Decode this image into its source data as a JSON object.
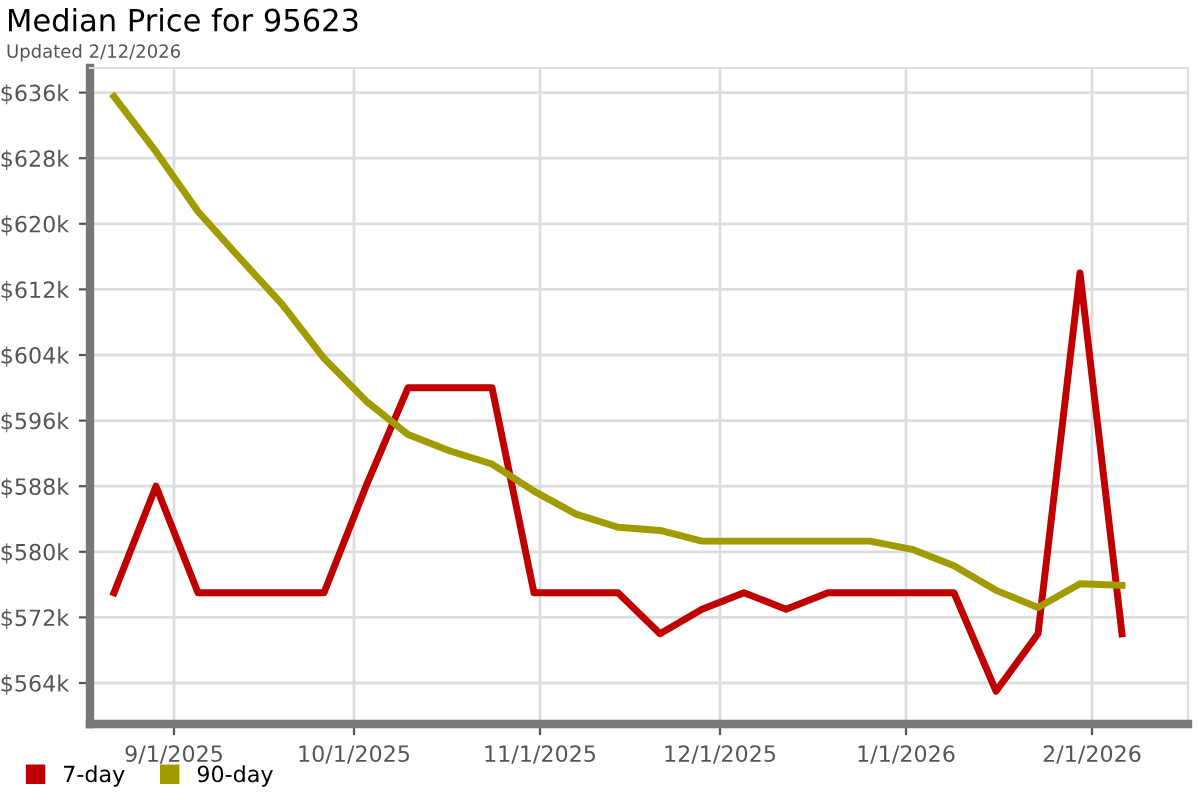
{
  "chart_data": {
    "type": "line",
    "title": "Median Price for 95623",
    "subtitle": "Updated 2/12/2026",
    "x": [
      "2025-08-22",
      "2025-08-29",
      "2025-09-05",
      "2025-09-12",
      "2025-09-19",
      "2025-09-26",
      "2025-10-03",
      "2025-10-10",
      "2025-10-17",
      "2025-10-24",
      "2025-10-31",
      "2025-11-07",
      "2025-11-14",
      "2025-11-21",
      "2025-11-28",
      "2025-12-05",
      "2025-12-12",
      "2025-12-19",
      "2025-12-26",
      "2026-01-02",
      "2026-01-09",
      "2026-01-16",
      "2026-01-23",
      "2026-01-30",
      "2026-02-06"
    ],
    "series": [
      {
        "name": "7-day",
        "color": "#c00000",
        "values": [
          575,
          588,
          575,
          575,
          575,
          575,
          588,
          600,
          600,
          600,
          575,
          575,
          575,
          570,
          573,
          575,
          573,
          575,
          575,
          575,
          575,
          563,
          570,
          614,
          570
        ]
      },
      {
        "name": "90-day",
        "color": "#a09c00",
        "values": [
          635.5,
          628.8,
          621.5,
          615.8,
          610.2,
          603.6,
          598.4,
          594.3,
          592.3,
          590.7,
          587.4,
          584.6,
          583.0,
          582.6,
          581.3,
          581.3,
          581.3,
          581.3,
          581.3,
          580.3,
          578.3,
          575.3,
          573.2,
          576.1,
          575.9
        ]
      }
    ],
    "xlim": [
      "2025-08-18",
      "2026-02-17"
    ],
    "xticks": [
      {
        "value": "2025-09-01",
        "label": "9/1/2025"
      },
      {
        "value": "2025-10-01",
        "label": "10/1/2025"
      },
      {
        "value": "2025-11-01",
        "label": "11/1/2025"
      },
      {
        "value": "2025-12-01",
        "label": "12/1/2025"
      },
      {
        "value": "2026-01-01",
        "label": "1/1/2026"
      },
      {
        "value": "2026-02-01",
        "label": "2/1/2026"
      }
    ],
    "ylim": [
      559,
      639
    ],
    "yticks": [
      {
        "value": 564,
        "label": "$564k"
      },
      {
        "value": 572,
        "label": "$572k"
      },
      {
        "value": 580,
        "label": "$580k"
      },
      {
        "value": 588,
        "label": "$588k"
      },
      {
        "value": 596,
        "label": "$596k"
      },
      {
        "value": 604,
        "label": "$604k"
      },
      {
        "value": 612,
        "label": "$612k"
      },
      {
        "value": 620,
        "label": "$620k"
      },
      {
        "value": 628,
        "label": "$628k"
      },
      {
        "value": 636,
        "label": "$636k"
      }
    ],
    "grid": true,
    "legend": "bottom left",
    "marker": "none",
    "line_style": "solid"
  }
}
